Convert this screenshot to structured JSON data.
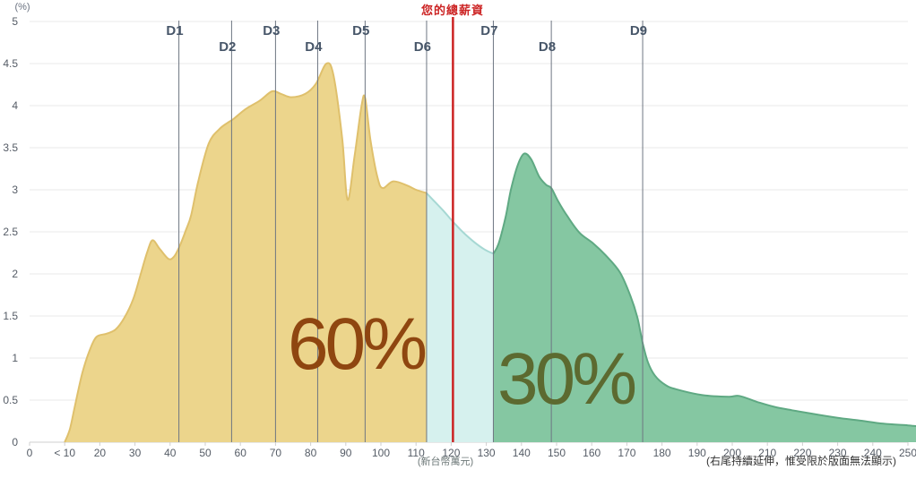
{
  "chart_data": {
    "type": "area",
    "title": "",
    "ylabel": "(%)",
    "xlabel": "(新台幣萬元)",
    "note": "(右尾持續延伸，惟受限於版面無法顯示)",
    "ylim": [
      0,
      5
    ],
    "xlim": [
      0,
      252.5
    ],
    "grid": true,
    "y_ticks": [
      0,
      0.5,
      1,
      1.5,
      2,
      2.5,
      3,
      3.5,
      4,
      4.5,
      5
    ],
    "x_tick_labels": [
      "0",
      "< 10",
      "20",
      "30",
      "40",
      "50",
      "60",
      "70",
      "80",
      "90",
      "100",
      "110",
      "120",
      "130",
      "140",
      "150",
      "160",
      "170",
      "180",
      "190",
      "200",
      "210",
      "220",
      "230",
      "240",
      "250"
    ],
    "x_tick_values": [
      0,
      10,
      20,
      30,
      40,
      50,
      60,
      70,
      80,
      90,
      100,
      110,
      120,
      130,
      140,
      150,
      160,
      170,
      180,
      190,
      200,
      210,
      220,
      230,
      240,
      250
    ],
    "marker": {
      "label": "您的總薪資",
      "value": 120.5,
      "color": "#cc2323"
    },
    "deciles": [
      {
        "label": "D1",
        "value": 42.5,
        "row": 0
      },
      {
        "label": "D2",
        "value": 57.5,
        "row": 1
      },
      {
        "label": "D3",
        "value": 70,
        "row": 0
      },
      {
        "label": "D4",
        "value": 82,
        "row": 1
      },
      {
        "label": "D5",
        "value": 95.5,
        "row": 0
      },
      {
        "label": "D6",
        "value": 113,
        "row": 1
      },
      {
        "label": "D7",
        "value": 132,
        "row": 0
      },
      {
        "label": "D8",
        "value": 148.5,
        "row": 1
      },
      {
        "label": "D9",
        "value": 174.5,
        "row": 0
      }
    ],
    "regions": [
      {
        "name": "bottom-60-percent",
        "label": "60%",
        "from": 10,
        "to": 113,
        "fill": "#ecd58c",
        "stroke": "#dfc06c",
        "label_color": "#8f4610"
      },
      {
        "name": "your-decile-band",
        "label": "",
        "from": 113,
        "to": 132,
        "fill": "#d6f1ee",
        "stroke": "#a6d8d3",
        "label_color": ""
      },
      {
        "name": "top-30-percent",
        "label": "30%",
        "from": 132,
        "to": 252.5,
        "fill": "#85c7a2",
        "stroke": "#5fa983",
        "label_color": "#5c6a30"
      }
    ],
    "points": [
      [
        10,
        0
      ],
      [
        11.5,
        0.16
      ],
      [
        13,
        0.45
      ],
      [
        15,
        0.82
      ],
      [
        17,
        1.08
      ],
      [
        19,
        1.25
      ],
      [
        22,
        1.29
      ],
      [
        24.5,
        1.34
      ],
      [
        27,
        1.48
      ],
      [
        29.5,
        1.7
      ],
      [
        31.5,
        1.98
      ],
      [
        33.5,
        2.26
      ],
      [
        35,
        2.4
      ],
      [
        37,
        2.3
      ],
      [
        39.5,
        2.18
      ],
      [
        41,
        2.2
      ],
      [
        42.5,
        2.31
      ],
      [
        44.5,
        2.52
      ],
      [
        46,
        2.7
      ],
      [
        48,
        3.1
      ],
      [
        51,
        3.55
      ],
      [
        54,
        3.72
      ],
      [
        56.5,
        3.8
      ],
      [
        58,
        3.84
      ],
      [
        61.5,
        3.96
      ],
      [
        65.5,
        4.06
      ],
      [
        69,
        4.17
      ],
      [
        71.5,
        4.14
      ],
      [
        74.5,
        4.1
      ],
      [
        78.5,
        4.14
      ],
      [
        81.5,
        4.26
      ],
      [
        84.5,
        4.5
      ],
      [
        86.5,
        4.36
      ],
      [
        89,
        3.6
      ],
      [
        90.5,
        2.88
      ],
      [
        92.5,
        3.4
      ],
      [
        94.5,
        4.0
      ],
      [
        95.5,
        4.09
      ],
      [
        97,
        3.6
      ],
      [
        99,
        3.15
      ],
      [
        100.5,
        3.02
      ],
      [
        103.5,
        3.1
      ],
      [
        107.5,
        3.05
      ],
      [
        110,
        3.0
      ],
      [
        113,
        2.96
      ],
      [
        115.5,
        2.85
      ],
      [
        118,
        2.74
      ],
      [
        120.5,
        2.62
      ],
      [
        123.5,
        2.49
      ],
      [
        126.5,
        2.38
      ],
      [
        129.5,
        2.29
      ],
      [
        132,
        2.24
      ],
      [
        133.5,
        2.36
      ],
      [
        135.5,
        2.68
      ],
      [
        137,
        3.0
      ],
      [
        139,
        3.3
      ],
      [
        140.8,
        3.43
      ],
      [
        142.8,
        3.36
      ],
      [
        145,
        3.16
      ],
      [
        147,
        3.06
      ],
      [
        148.5,
        3.02
      ],
      [
        150.5,
        2.86
      ],
      [
        153,
        2.69
      ],
      [
        156.5,
        2.49
      ],
      [
        160.5,
        2.36
      ],
      [
        164,
        2.22
      ],
      [
        168,
        2.02
      ],
      [
        171,
        1.74
      ],
      [
        173,
        1.48
      ],
      [
        174.5,
        1.18
      ],
      [
        176,
        0.95
      ],
      [
        178,
        0.79
      ],
      [
        181,
        0.68
      ],
      [
        184,
        0.63
      ],
      [
        191.5,
        0.56
      ],
      [
        199,
        0.54
      ],
      [
        202,
        0.55
      ],
      [
        207,
        0.48
      ],
      [
        212,
        0.42
      ],
      [
        217,
        0.38
      ],
      [
        222.5,
        0.34
      ],
      [
        230,
        0.29
      ],
      [
        236,
        0.26
      ],
      [
        243,
        0.22
      ],
      [
        250,
        0.2
      ],
      [
        252.5,
        0.19
      ]
    ],
    "colors": {
      "grid": "#e9e9e9",
      "axis": "#cfcfcf",
      "tick_text": "#555c66",
      "decile_line": "#6e7682",
      "decile_text": "#475669"
    }
  }
}
